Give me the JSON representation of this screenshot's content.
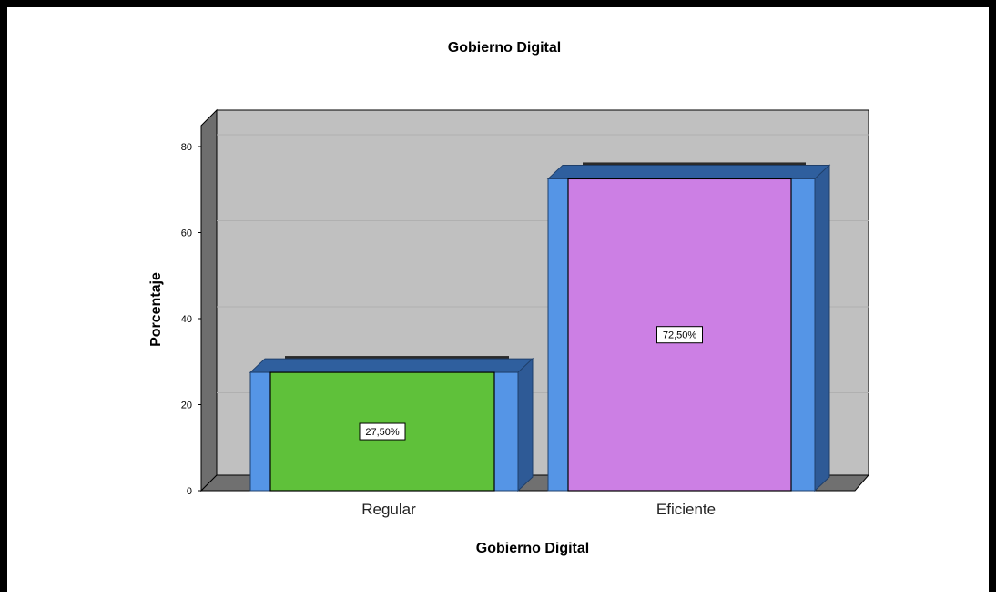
{
  "chart_data": {
    "type": "bar",
    "title": "Gobierno Digital",
    "xlabel": "Gobierno Digital",
    "ylabel": "Porcentaje",
    "categories": [
      "Regular",
      "Eficiente"
    ],
    "values": [
      27.5,
      72.5
    ],
    "data_labels": [
      "27,50%",
      "72,50%"
    ],
    "y_ticks": [
      "0",
      "20",
      "40",
      "60",
      "80"
    ],
    "ylim": [
      0,
      85
    ],
    "grid": true,
    "bar_colors": [
      "#5fc13a",
      "#cc7fe4"
    ],
    "bar_side_color": "#5595e6",
    "bar_top_color": "#2f5f9e",
    "plot_background": "#c0c0c0",
    "floor_color": "#707070",
    "wall_color": "#6e6e6e"
  }
}
